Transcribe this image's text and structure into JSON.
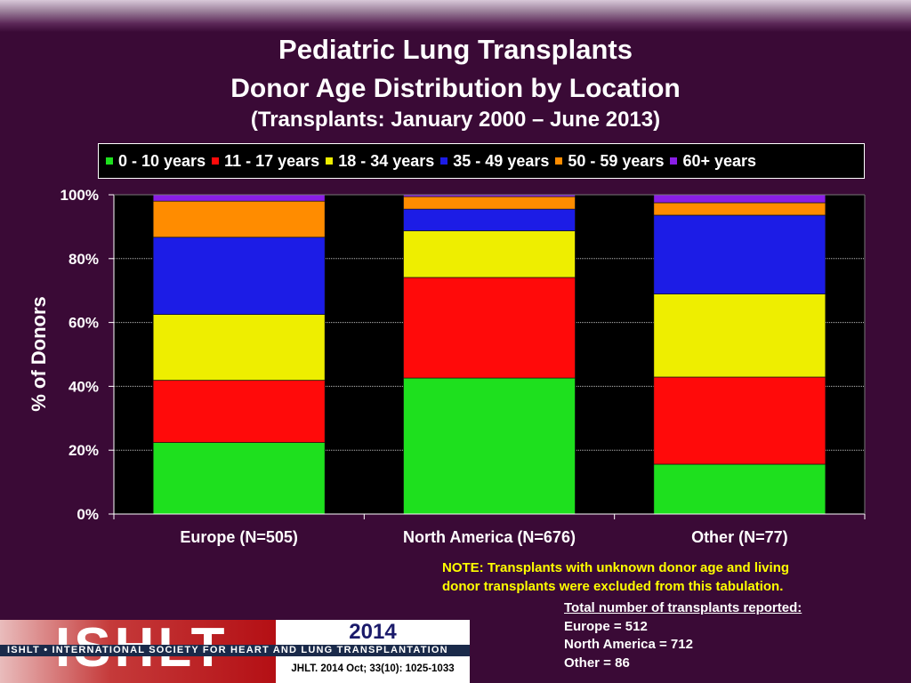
{
  "header": {
    "title": "Pediatric Lung Transplants",
    "subtitle": "Donor Age Distribution by Location",
    "subtitle2": "(Transplants: January 2000 – June 2013)"
  },
  "chart_data": {
    "type": "bar",
    "stacked": true,
    "categories": [
      "Europe (N=505)",
      "North America (N=676)",
      "Other (N=77)"
    ],
    "series": [
      {
        "name": "0 - 10 years",
        "color": "#1ee01e",
        "values": [
          22.4,
          42.6,
          15.6
        ]
      },
      {
        "name": "11 - 17 years",
        "color": "#ff0a0a",
        "values": [
          19.5,
          31.5,
          27.3
        ]
      },
      {
        "name": "18 - 34 years",
        "color": "#eeee00",
        "values": [
          20.6,
          14.6,
          26.0
        ]
      },
      {
        "name": "35 - 49 years",
        "color": "#1c1ce6",
        "values": [
          24.2,
          6.8,
          24.7
        ]
      },
      {
        "name": "50 - 59 years",
        "color": "#ff8c00",
        "values": [
          11.3,
          3.9,
          3.9
        ]
      },
      {
        "name": "60+ years",
        "color": "#8a1ee6",
        "values": [
          2.0,
          0.6,
          2.5
        ]
      }
    ],
    "ylabel": "% of Donors",
    "ylim": [
      0,
      100
    ],
    "yticks": [
      "0%",
      "20%",
      "40%",
      "60%",
      "80%",
      "100%"
    ],
    "grid": true,
    "legend_position": "top"
  },
  "note": {
    "line1": "NOTE: Transplants with unknown donor age and living",
    "line2": "donor transplants were excluded from this tabulation."
  },
  "totals": {
    "header": "Total number of transplants reported:",
    "lines": [
      "Europe = 512",
      "North America = 712",
      "Other = 86"
    ]
  },
  "logo": {
    "letters": "ISHLT",
    "strip": "ISHLT • INTERNATIONAL SOCIETY FOR HEART AND LUNG TRANSPLANTATION",
    "year": "2014",
    "citation": "JHLT. 2014 Oct; 33(10): 1025-1033"
  }
}
